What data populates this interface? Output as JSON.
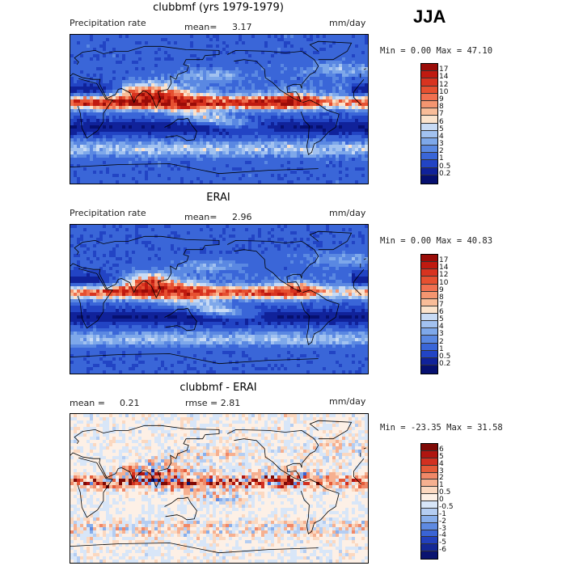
{
  "season": "JJA",
  "panels": [
    {
      "title": "clubbmf (yrs 1979-1979)",
      "left_label": "Precipitation rate",
      "mean_label": "mean=",
      "mean_value": "3.17",
      "units": "mm/day",
      "min_max": "Min =    0.00 Max =  47.10",
      "cbar_labels": [
        "17",
        "14",
        "12",
        "10",
        "9",
        "8",
        "7",
        "6",
        "5",
        "4",
        "3",
        "2",
        "1",
        "0.5",
        "0.2"
      ]
    },
    {
      "title": "ERAI",
      "left_label": "Precipitation rate",
      "mean_label": "mean=",
      "mean_value": "2.96",
      "units": "mm/day",
      "min_max": "Min =    0.00 Max =  40.83",
      "cbar_labels": [
        "17",
        "14",
        "12",
        "10",
        "9",
        "8",
        "7",
        "6",
        "5",
        "4",
        "3",
        "2",
        "1",
        "0.5",
        "0.2"
      ]
    },
    {
      "title": "clubbmf - ERAI",
      "left_label": "mean =",
      "mean_label": "0.21",
      "mean_value": "rmse =    2.81",
      "units": "mm/day",
      "min_max": "Min = -23.35 Max =  31.58",
      "cbar_labels": [
        "6",
        "5",
        "4",
        "3",
        "2",
        "1",
        "0.5",
        "0",
        "-0.5",
        "-1",
        "-2",
        "-3",
        "-4",
        "-5",
        "-6"
      ]
    }
  ],
  "colors": {
    "seq": [
      "#9a0c08",
      "#c01a10",
      "#d8331f",
      "#e65030",
      "#f07050",
      "#f49570",
      "#f8bc98",
      "#fbe3cc",
      "#c8dbf5",
      "#a2c2f0",
      "#7ea8ea",
      "#5a88e2",
      "#3a66d8",
      "#2244c4",
      "#10229a",
      "#061070"
    ],
    "div": [
      "#7e0a06",
      "#b01510",
      "#d23020",
      "#e45a38",
      "#f08868",
      "#f6b090",
      "#fbd8c0",
      "#fdf0e6",
      "#d8e6f8",
      "#b4cdf2",
      "#88aeeb",
      "#5e8ae2",
      "#3a64d4",
      "#2240bc",
      "#142896",
      "#0a1470"
    ]
  },
  "chart_data": [
    {
      "type": "heatmap",
      "title": "clubbmf (yrs 1979-1979)",
      "subtitle": "Precipitation rate",
      "units": "mm/day",
      "mean": 3.17,
      "min": 0.0,
      "max": 47.1,
      "colorbar_levels": [
        0.2,
        0.5,
        1,
        2,
        3,
        4,
        5,
        6,
        7,
        8,
        9,
        10,
        12,
        14,
        17
      ]
    },
    {
      "type": "heatmap",
      "title": "ERAI",
      "subtitle": "Precipitation rate",
      "units": "mm/day",
      "mean": 2.96,
      "min": 0.0,
      "max": 40.83,
      "colorbar_levels": [
        0.2,
        0.5,
        1,
        2,
        3,
        4,
        5,
        6,
        7,
        8,
        9,
        10,
        12,
        14,
        17
      ]
    },
    {
      "type": "heatmap",
      "title": "clubbmf - ERAI",
      "units": "mm/day",
      "mean": 0.21,
      "rmse": 2.81,
      "min": -23.35,
      "max": 31.58,
      "colorbar_levels": [
        -6,
        -5,
        -4,
        -3,
        -2,
        -1,
        -0.5,
        0,
        0.5,
        1,
        2,
        3,
        4,
        5,
        6
      ]
    }
  ]
}
